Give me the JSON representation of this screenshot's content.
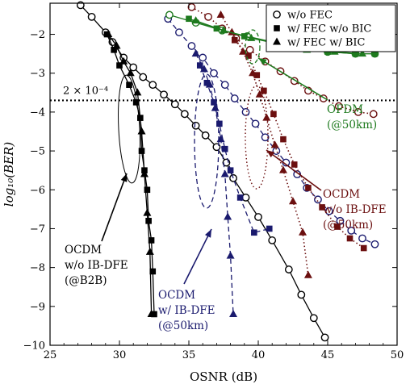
{
  "chart_data": {
    "type": "line",
    "xlabel": "OSNR (dB)",
    "ylabel": "log₁₀(BER)",
    "xlim": [
      25,
      50
    ],
    "ylim": [
      -10,
      -1.2
    ],
    "xticks": [
      25,
      30,
      35,
      40,
      45,
      50
    ],
    "yticks": [
      -2,
      -3,
      -4,
      -5,
      -6,
      -7,
      -8,
      -9,
      -10
    ],
    "threshold": {
      "y": -3.7,
      "label": "2 × 10⁻⁴"
    },
    "legend": {
      "position": "top-right",
      "entries": [
        {
          "marker": "open-circle",
          "label": "w/o FEC"
        },
        {
          "marker": "filled-square",
          "label": "w/   FEC w/o BIC"
        },
        {
          "marker": "filled-triangle",
          "label": "w/   FEC w/   BIC"
        }
      ]
    },
    "colors": {
      "black": "#000000",
      "navy": "#1a1a6e",
      "darkred": "#6b0f0f",
      "green": "#1e7a1e"
    },
    "series": [
      {
        "group": "OCDM w/o IB-DFE (@B2B)",
        "color": "black",
        "marker": "open-circle",
        "line": "solid",
        "points": [
          [
            27.2,
            -1.25
          ],
          [
            28.0,
            -1.55
          ],
          [
            29.0,
            -1.95
          ],
          [
            29.5,
            -2.2
          ],
          [
            30.3,
            -2.6
          ],
          [
            31.0,
            -2.85
          ],
          [
            31.7,
            -3.1
          ],
          [
            32.4,
            -3.3
          ],
          [
            33.2,
            -3.55
          ],
          [
            34.0,
            -3.8
          ],
          [
            34.7,
            -4.05
          ],
          [
            35.5,
            -4.35
          ],
          [
            36.2,
            -4.6
          ],
          [
            37.0,
            -4.9
          ],
          [
            37.7,
            -5.3
          ],
          [
            38.2,
            -5.7
          ],
          [
            39.1,
            -6.2
          ],
          [
            40.0,
            -6.7
          ],
          [
            41.0,
            -7.3
          ],
          [
            42.2,
            -8.05
          ],
          [
            43.1,
            -8.7
          ],
          [
            44.0,
            -9.3
          ],
          [
            44.8,
            -9.8
          ]
        ]
      },
      {
        "group": "OCDM w/o IB-DFE (@B2B)",
        "color": "black",
        "marker": "filled-square",
        "line": "solid",
        "points": [
          [
            29.1,
            -2.0
          ],
          [
            29.6,
            -2.4
          ],
          [
            30.0,
            -2.8
          ],
          [
            30.7,
            -3.3
          ],
          [
            31.2,
            -3.75
          ],
          [
            31.5,
            -4.15
          ],
          [
            31.6,
            -5.0
          ],
          [
            31.8,
            -5.5
          ],
          [
            32.0,
            -6.0
          ],
          [
            32.1,
            -6.8
          ],
          [
            32.3,
            -7.3
          ],
          [
            32.4,
            -8.1
          ],
          [
            32.5,
            -9.2
          ]
        ]
      },
      {
        "group": "OCDM w/o IB-DFE (@B2B)",
        "color": "black",
        "marker": "filled-triangle",
        "line": "solid",
        "points": [
          [
            29.2,
            -2.0
          ],
          [
            29.8,
            -2.3
          ],
          [
            30.3,
            -2.7
          ],
          [
            30.8,
            -3.0
          ],
          [
            31.3,
            -3.5
          ],
          [
            31.6,
            -4.5
          ],
          [
            31.8,
            -5.6
          ],
          [
            32.0,
            -6.6
          ],
          [
            32.2,
            -7.6
          ],
          [
            32.3,
            -9.2
          ]
        ]
      },
      {
        "group": "OCDM w/ IB-DFE (@50km)",
        "color": "navy",
        "marker": "open-circle",
        "line": "dashed",
        "points": [
          [
            33.5,
            -1.6
          ],
          [
            34.3,
            -1.95
          ],
          [
            35.2,
            -2.3
          ],
          [
            36.0,
            -2.6
          ],
          [
            36.8,
            -3.0
          ],
          [
            37.6,
            -3.3
          ],
          [
            38.3,
            -3.65
          ],
          [
            39.1,
            -4.0
          ],
          [
            39.8,
            -4.3
          ],
          [
            40.5,
            -4.65
          ],
          [
            41.3,
            -5.0
          ],
          [
            42.0,
            -5.3
          ],
          [
            42.8,
            -5.6
          ],
          [
            43.5,
            -5.95
          ],
          [
            44.3,
            -6.25
          ],
          [
            45.1,
            -6.55
          ],
          [
            45.9,
            -6.8
          ],
          [
            46.7,
            -7.05
          ],
          [
            47.5,
            -7.25
          ],
          [
            48.4,
            -7.4
          ]
        ]
      },
      {
        "group": "OCDM w/ IB-DFE (@50km)",
        "color": "navy",
        "marker": "filled-square",
        "line": "dashed",
        "points": [
          [
            35.8,
            -2.8
          ],
          [
            36.3,
            -3.25
          ],
          [
            36.8,
            -3.75
          ],
          [
            37.2,
            -4.3
          ],
          [
            37.6,
            -4.95
          ],
          [
            38.0,
            -5.5
          ],
          [
            38.7,
            -6.2
          ],
          [
            39.7,
            -7.1
          ],
          [
            40.8,
            -7.0
          ]
        ]
      },
      {
        "group": "OCDM w/ IB-DFE (@50km)",
        "color": "navy",
        "marker": "filled-triangle",
        "line": "dashed",
        "points": [
          [
            35.5,
            -2.5
          ],
          [
            36.1,
            -2.9
          ],
          [
            36.5,
            -3.3
          ],
          [
            36.9,
            -3.9
          ],
          [
            37.3,
            -4.7
          ],
          [
            37.6,
            -5.6
          ],
          [
            37.8,
            -6.7
          ],
          [
            38.0,
            -7.7
          ],
          [
            38.2,
            -9.2
          ]
        ]
      },
      {
        "group": "OCDM w/o IB-DFE (@50km)",
        "color": "darkred",
        "marker": "open-circle",
        "line": "dotted",
        "points": [
          [
            35.2,
            -1.3
          ],
          [
            36.4,
            -1.55
          ],
          [
            37.4,
            -1.85
          ],
          [
            38.4,
            -2.1
          ],
          [
            39.4,
            -2.4
          ],
          [
            40.5,
            -2.7
          ],
          [
            41.6,
            -2.95
          ],
          [
            42.6,
            -3.2
          ],
          [
            43.6,
            -3.45
          ],
          [
            44.7,
            -3.65
          ],
          [
            45.8,
            -3.85
          ],
          [
            47.2,
            -4.0
          ],
          [
            48.3,
            -4.05
          ]
        ]
      },
      {
        "group": "OCDM w/o IB-DFE (@50km)",
        "color": "darkred",
        "marker": "filled-square",
        "line": "dotted",
        "points": [
          [
            38.3,
            -2.15
          ],
          [
            39.3,
            -2.55
          ],
          [
            39.9,
            -3.05
          ],
          [
            40.4,
            -3.45
          ],
          [
            41.1,
            -4.05
          ],
          [
            41.8,
            -4.7
          ],
          [
            42.6,
            -5.35
          ],
          [
            43.6,
            -5.95
          ],
          [
            44.6,
            -6.45
          ],
          [
            45.7,
            -6.95
          ],
          [
            46.6,
            -7.25
          ],
          [
            47.6,
            -7.5
          ]
        ]
      },
      {
        "group": "OCDM w/o IB-DFE (@50km)",
        "color": "darkred",
        "marker": "filled-triangle",
        "line": "dotted",
        "points": [
          [
            37.3,
            -1.5
          ],
          [
            38.1,
            -1.95
          ],
          [
            38.9,
            -2.45
          ],
          [
            39.6,
            -3.0
          ],
          [
            40.1,
            -3.55
          ],
          [
            40.6,
            -4.15
          ],
          [
            41.2,
            -4.85
          ],
          [
            41.8,
            -5.5
          ],
          [
            42.5,
            -6.3
          ],
          [
            43.2,
            -7.1
          ],
          [
            43.6,
            -8.2
          ]
        ]
      },
      {
        "group": "OFDM (@50km)",
        "color": "green",
        "marker": "open-circle",
        "line": "solid",
        "points": [
          [
            33.6,
            -1.5
          ],
          [
            35.5,
            -1.7
          ],
          [
            37.4,
            -1.9
          ],
          [
            39.2,
            -2.05
          ],
          [
            41.1,
            -2.2
          ],
          [
            43.0,
            -2.35
          ],
          [
            45.0,
            -2.45
          ],
          [
            47.0,
            -2.5
          ],
          [
            48.4,
            -2.5
          ]
        ]
      },
      {
        "group": "OFDM (@50km)",
        "color": "green",
        "marker": "filled-square",
        "line": "solid",
        "points": [
          [
            35.0,
            -1.6
          ],
          [
            37.0,
            -1.85
          ],
          [
            39.0,
            -2.05
          ],
          [
            41.0,
            -2.2
          ],
          [
            43.0,
            -2.35
          ],
          [
            45.0,
            -2.45
          ],
          [
            47.0,
            -2.5
          ],
          [
            48.4,
            -2.5
          ]
        ]
      },
      {
        "group": "OFDM (@50km)",
        "color": "green",
        "marker": "filled-triangle",
        "line": "solid",
        "points": [
          [
            35.5,
            -1.65
          ],
          [
            37.5,
            -1.9
          ],
          [
            39.5,
            -2.1
          ],
          [
            41.5,
            -2.25
          ],
          [
            43.5,
            -2.4
          ],
          [
            45.5,
            -2.45
          ],
          [
            47.5,
            -2.5
          ]
        ]
      }
    ],
    "annotations": [
      {
        "name": "ofdm",
        "lines": [
          "OFDM",
          "(@50km)"
        ],
        "color": "green"
      },
      {
        "name": "ocdm-noibdfe-50km",
        "lines": [
          "OCDM",
          "w/o IB-DFE",
          "(@50km)"
        ],
        "color": "darkred"
      },
      {
        "name": "ocdm-noibdfe-b2b",
        "lines": [
          "OCDM",
          "w/o IB-DFE",
          "(@B2B)"
        ],
        "color": "black"
      },
      {
        "name": "ocdm-ibdfe-50km",
        "lines": [
          "OCDM",
          "w/  IB-DFE",
          "(@50km)"
        ],
        "color": "navy"
      }
    ]
  }
}
